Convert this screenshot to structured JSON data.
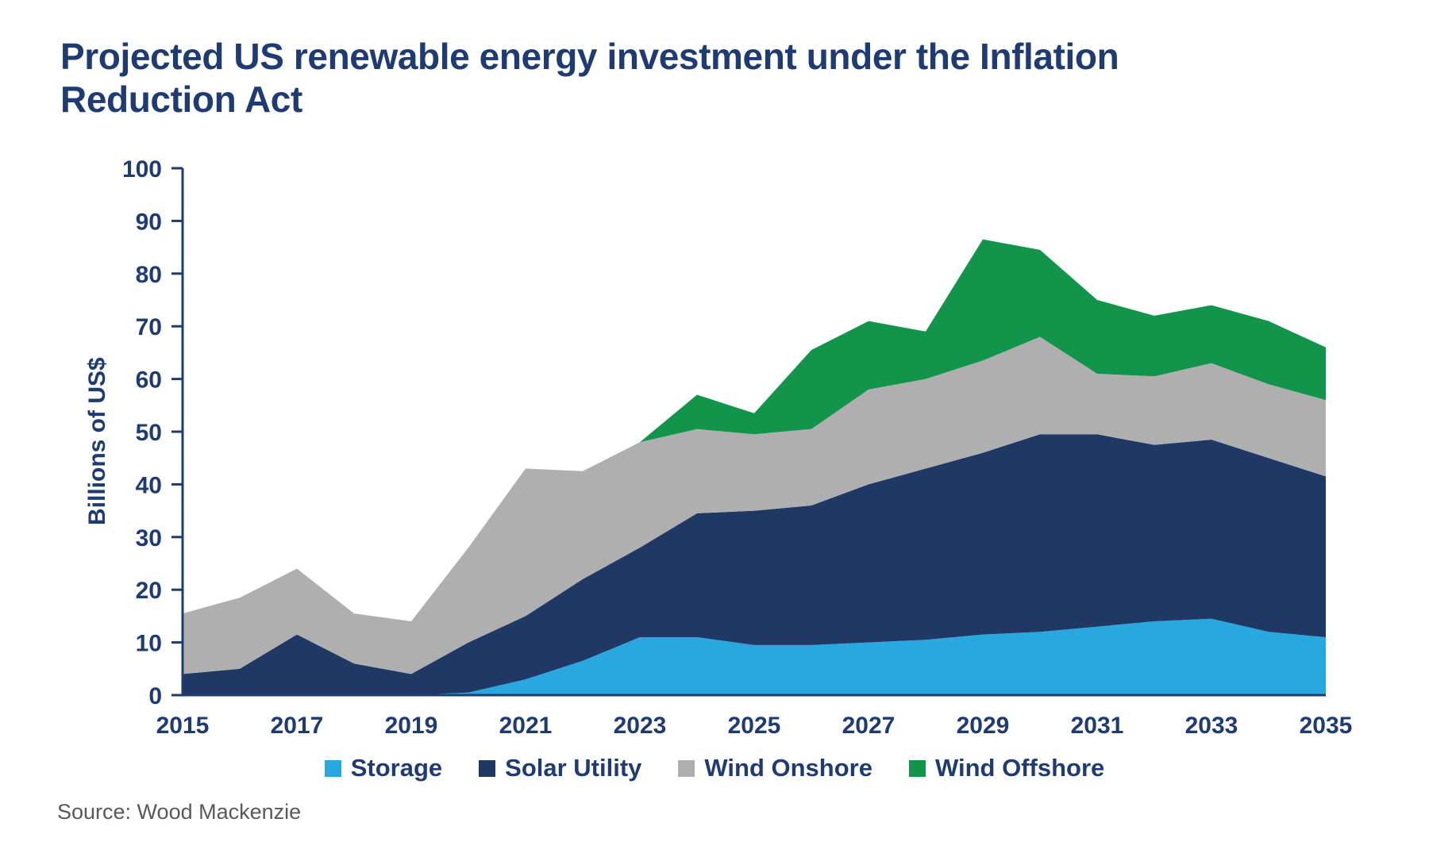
{
  "title": "Projected US renewable energy investment under the Inflation Reduction Act",
  "source": "Source: Wood Mackenzie",
  "colors": {
    "title_text": "#1F3B73",
    "axis": "#1F3B73",
    "source_text": "#595959"
  },
  "chart_data": {
    "type": "area",
    "stacked": true,
    "title": "Projected US renewable energy investment under the Inflation Reduction Act",
    "xlabel": "",
    "ylabel": "Billions of US$",
    "ylim": [
      0,
      100
    ],
    "ytick_step": 10,
    "grid": false,
    "legend_position": "bottom",
    "axis_color": "#1F3B73",
    "x": [
      2015,
      2016,
      2017,
      2018,
      2019,
      2020,
      2021,
      2022,
      2023,
      2024,
      2025,
      2026,
      2027,
      2028,
      2029,
      2030,
      2031,
      2032,
      2033,
      2034,
      2035
    ],
    "xtick_labels": [
      "2015",
      "2017",
      "2019",
      "2021",
      "2023",
      "2025",
      "2027",
      "2029",
      "2031",
      "2033",
      "2035"
    ],
    "series": [
      {
        "name": "Storage",
        "color": "#29A8E0",
        "values": [
          0,
          0,
          0,
          0,
          0,
          0.5,
          3,
          6.5,
          11,
          11,
          9.5,
          9.5,
          10,
          10.5,
          11.5,
          12,
          13,
          14,
          14.5,
          12,
          11
        ]
      },
      {
        "name": "Solar Utility",
        "color": "#1F3864",
        "values": [
          4,
          5,
          11.5,
          6,
          4,
          9.5,
          12,
          15.5,
          17,
          23.5,
          25.5,
          26.5,
          30,
          32.5,
          34.5,
          37.5,
          36.5,
          33.5,
          34,
          33,
          30.5
        ]
      },
      {
        "name": "Wind Onshore",
        "color": "#AFAFAF",
        "values": [
          11.5,
          13.5,
          12.5,
          9.5,
          10,
          18,
          28,
          20.5,
          20,
          16,
          14.5,
          14.5,
          18,
          17,
          17.5,
          18.5,
          11.5,
          13,
          14.5,
          14,
          14.5
        ]
      },
      {
        "name": "Wind Offshore",
        "color": "#12954A",
        "values": [
          0,
          0,
          0,
          0,
          0,
          0,
          0,
          0,
          0,
          6.5,
          4,
          15,
          13,
          9,
          23,
          16.5,
          14,
          11.5,
          11,
          12,
          10
        ]
      }
    ]
  }
}
